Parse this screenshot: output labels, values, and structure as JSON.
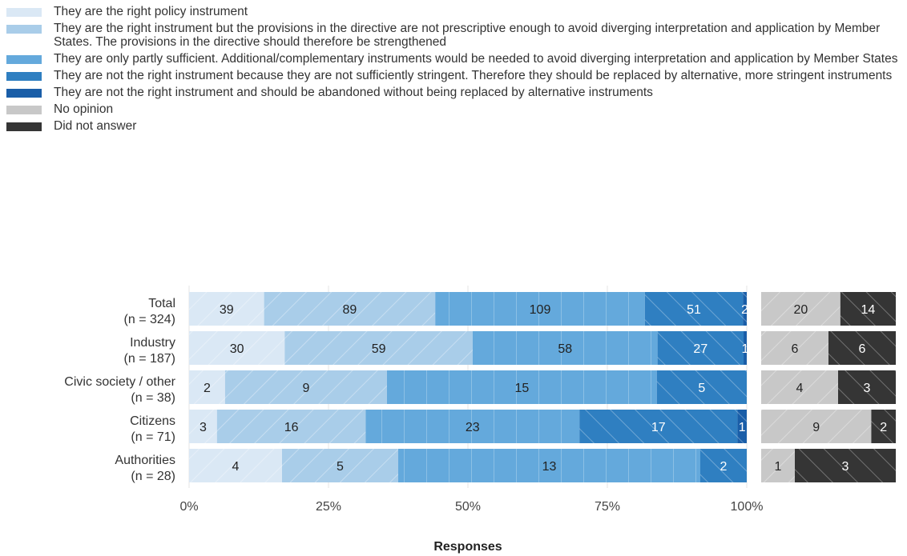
{
  "legend": [
    {
      "label": "They are the right policy instrument",
      "color": "#dae8f5"
    },
    {
      "label": "They are the right instrument but the provisions in the directive are not prescriptive enough to avoid diverging interpretation and application by Member States. The provisions in the directive should therefore be strengthened",
      "color": "#a9cde9"
    },
    {
      "label": "They are only partly sufficient. Additional/complementary instruments would be needed to avoid diverging interpretation and application by Member States",
      "color": "#64a9dc"
    },
    {
      "label": "They are not the right instrument because they are not sufficiently stringent. Therefore they should be replaced by alternative, more stringent instruments",
      "color": "#2f7fc1"
    },
    {
      "label": "They are not the right instrument and should be abandoned without being replaced by alternative instruments",
      "color": "#1a5ea8"
    },
    {
      "label": "No opinion",
      "color": "#c8c8c8"
    },
    {
      "label": "Did not answer",
      "color": "#353535"
    }
  ],
  "chart_data": {
    "type": "bar",
    "orientation": "horizontal",
    "stacked": "percent",
    "xlabel": "Responses",
    "xticks": [
      "0%",
      "25%",
      "50%",
      "75%",
      "100%"
    ],
    "categories": [
      "Total",
      "Industry",
      "Civic society / other",
      "Citizens",
      "Authorities"
    ],
    "category_n": [
      "(n = 324)",
      "(n = 187)",
      "(n = 38)",
      "(n = 71)",
      "(n = 28)"
    ],
    "series": [
      {
        "name": "They are the right policy instrument",
        "values": [
          39,
          30,
          2,
          3,
          4
        ]
      },
      {
        "name": "They are the right instrument but the provisions in the directive are not prescriptive enough to avoid diverging interpretation and application by Member States. The provisions in the directive should therefore be strengthened",
        "values": [
          89,
          59,
          9,
          16,
          5
        ]
      },
      {
        "name": "They are only partly sufficient. Additional/complementary instruments would be needed to avoid diverging interpretation and application by Member States",
        "values": [
          109,
          58,
          15,
          23,
          13
        ]
      },
      {
        "name": "They are not the right instrument because they are not sufficiently stringent. Therefore they should be replaced by alternative, more stringent instruments",
        "values": [
          51,
          27,
          5,
          17,
          2
        ]
      },
      {
        "name": "They are not the right instrument and should be abandoned without being replaced by alternative instruments",
        "values": [
          2,
          1,
          0,
          1,
          0
        ]
      }
    ],
    "side_series": [
      {
        "name": "No opinion",
        "values": [
          20,
          6,
          4,
          9,
          1
        ]
      },
      {
        "name": "Did not answer",
        "values": [
          14,
          6,
          3,
          2,
          3
        ]
      }
    ],
    "grid": true,
    "legend_position": "top-left"
  }
}
